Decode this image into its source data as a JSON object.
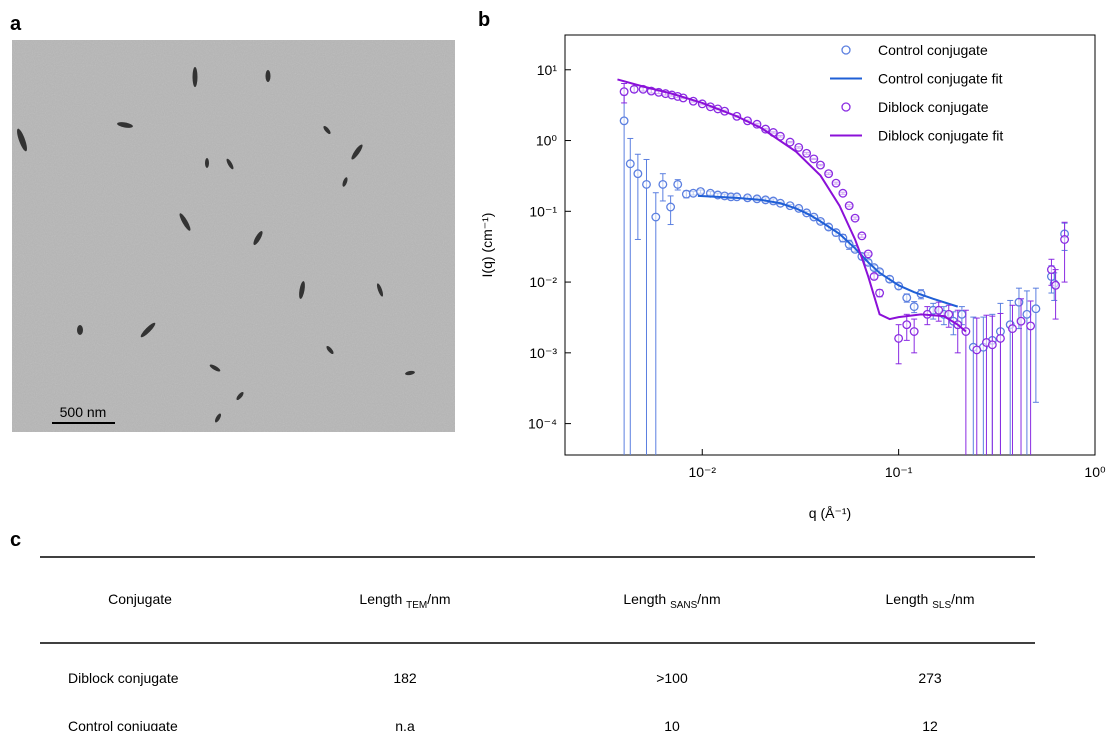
{
  "panel_labels": [
    "a",
    "b",
    "c"
  ],
  "image": {
    "scale_bar": "500 nm"
  },
  "chart_data": {
    "type": "scatter",
    "xlabel": "q (Å⁻¹)",
    "ylabel": "I(q) (cm⁻¹)",
    "log_x": true,
    "log_y": true,
    "legend": "upper right",
    "xlim": [
      0.002,
      1
    ],
    "ylim": [
      3.6e-05,
      31
    ],
    "xticks": [
      {
        "value": 0.01,
        "label": "10⁻²"
      },
      {
        "value": 0.1,
        "label": "10⁻¹"
      },
      {
        "value": 1,
        "label": "10⁰"
      }
    ],
    "yticks": [
      {
        "value": 0.0001,
        "label": "10⁻⁴"
      },
      {
        "value": 0.001,
        "label": "10⁻³"
      },
      {
        "value": 0.01,
        "label": "10⁻²"
      },
      {
        "value": 0.1,
        "label": "10⁻¹"
      },
      {
        "value": 1,
        "label": "10⁰"
      },
      {
        "value": 10,
        "label": "10¹"
      }
    ],
    "series": [
      {
        "name": "Control conjugate",
        "type": "scatter",
        "color": "#5b7fe0",
        "x": [
          0.004,
          0.0043,
          0.0047,
          0.0052,
          0.0058,
          0.0063,
          0.0069,
          0.0075,
          0.0083,
          0.009,
          0.0098,
          0.011,
          0.012,
          0.013,
          0.014,
          0.015,
          0.017,
          0.019,
          0.021,
          0.023,
          0.025,
          0.028,
          0.031,
          0.034,
          0.037,
          0.04,
          0.044,
          0.048,
          0.052,
          0.056,
          0.06,
          0.065,
          0.07,
          0.075,
          0.08,
          0.09,
          0.1,
          0.11,
          0.12,
          0.13,
          0.15,
          0.17,
          0.19,
          0.21,
          0.24,
          0.27,
          0.3,
          0.33,
          0.37,
          0.41,
          0.45,
          0.5,
          0.6,
          0.62,
          0.7
        ],
        "values": [
          1.9,
          0.47,
          0.34,
          0.24,
          0.083,
          0.24,
          0.115,
          0.24,
          0.175,
          0.18,
          0.19,
          0.18,
          0.17,
          0.165,
          0.16,
          0.16,
          0.155,
          0.15,
          0.145,
          0.14,
          0.13,
          0.12,
          0.11,
          0.095,
          0.083,
          0.072,
          0.06,
          0.05,
          0.042,
          0.034,
          0.029,
          0.023,
          0.019,
          0.016,
          0.014,
          0.011,
          0.0088,
          0.006,
          0.0045,
          0.0068,
          0.004,
          0.0035,
          0.0028,
          0.0035,
          0.0012,
          0.0012,
          0.0015,
          0.002,
          0.0025,
          0.0052,
          0.0035,
          0.0042,
          0.012,
          0.0095,
          0.048
        ],
        "errors": [
          2.5,
          0.6,
          0.3,
          0.3,
          0.1,
          0.1,
          0.05,
          0.04,
          0.02,
          0.01,
          0.01,
          0.01,
          0.01,
          0.01,
          0.01,
          0.01,
          0.01,
          0.01,
          0.01,
          0.01,
          0.005,
          0.005,
          0.005,
          0.005,
          0.005,
          0.005,
          0.005,
          0.005,
          0.005,
          0.005,
          0.002,
          0.002,
          0.0015,
          0.0012,
          0.001,
          0.001,
          0.0008,
          0.0008,
          0.0008,
          0.001,
          0.001,
          0.001,
          0.001,
          0.001,
          0.002,
          0.002,
          0.002,
          0.003,
          0.003,
          0.003,
          0.004,
          0.004,
          0.005,
          0.004,
          0.02
        ]
      },
      {
        "name": "Control conjugate fit",
        "type": "line",
        "color": "#1f5fd6",
        "x": [
          0.0095,
          0.012,
          0.015,
          0.02,
          0.025,
          0.03,
          0.035,
          0.04,
          0.05,
          0.06,
          0.07,
          0.08,
          0.1,
          0.12,
          0.15,
          0.2
        ],
        "values": [
          0.165,
          0.16,
          0.155,
          0.145,
          0.13,
          0.11,
          0.09,
          0.072,
          0.048,
          0.03,
          0.019,
          0.0135,
          0.009,
          0.0072,
          0.0058,
          0.0045
        ]
      },
      {
        "name": "Diblock conjugate",
        "type": "scatter",
        "color": "#8a2be2",
        "x": [
          0.004,
          0.0045,
          0.005,
          0.0055,
          0.006,
          0.0065,
          0.007,
          0.0075,
          0.008,
          0.009,
          0.01,
          0.011,
          0.012,
          0.013,
          0.015,
          0.017,
          0.019,
          0.021,
          0.023,
          0.025,
          0.028,
          0.031,
          0.034,
          0.037,
          0.04,
          0.044,
          0.048,
          0.052,
          0.056,
          0.06,
          0.065,
          0.07,
          0.075,
          0.08,
          0.1,
          0.11,
          0.12,
          0.14,
          0.16,
          0.18,
          0.2,
          0.22,
          0.25,
          0.28,
          0.3,
          0.33,
          0.38,
          0.42,
          0.47,
          0.6,
          0.63,
          0.7
        ],
        "values": [
          4.9,
          5.3,
          5.3,
          5.0,
          4.8,
          4.6,
          4.4,
          4.2,
          4.0,
          3.6,
          3.3,
          3.0,
          2.8,
          2.6,
          2.2,
          1.9,
          1.7,
          1.45,
          1.3,
          1.15,
          0.95,
          0.8,
          0.66,
          0.55,
          0.45,
          0.34,
          0.25,
          0.18,
          0.12,
          0.08,
          0.045,
          0.025,
          0.012,
          0.007,
          0.0016,
          0.0025,
          0.002,
          0.0035,
          0.004,
          0.0035,
          0.0025,
          0.002,
          0.0011,
          0.0014,
          0.0013,
          0.0016,
          0.0022,
          0.0028,
          0.0024,
          0.015,
          0.009,
          0.04
        ],
        "errors": [
          1.5,
          0.5,
          0.3,
          0.3,
          0.2,
          0.2,
          0.15,
          0.15,
          0.1,
          0.1,
          0.1,
          0.1,
          0.08,
          0.08,
          0.06,
          0.05,
          0.05,
          0.04,
          0.03,
          0.03,
          0.02,
          0.02,
          0.02,
          0.01,
          0.01,
          0.01,
          0.008,
          0.006,
          0.004,
          0.003,
          0.002,
          0.001,
          0.001,
          0.0008,
          0.0009,
          0.001,
          0.001,
          0.001,
          0.0012,
          0.0012,
          0.0015,
          0.002,
          0.002,
          0.002,
          0.002,
          0.002,
          0.0025,
          0.003,
          0.003,
          0.006,
          0.006,
          0.03
        ]
      },
      {
        "name": "Diblock conjugate fit",
        "type": "line",
        "color": "#8b10d8",
        "x": [
          0.0037,
          0.005,
          0.007,
          0.01,
          0.015,
          0.02,
          0.03,
          0.04,
          0.05,
          0.06,
          0.065,
          0.07,
          0.08,
          0.09,
          0.1,
          0.13,
          0.17,
          0.2,
          0.22
        ],
        "values": [
          7.3,
          5.8,
          4.6,
          3.4,
          2.2,
          1.5,
          0.7,
          0.32,
          0.12,
          0.04,
          0.022,
          0.012,
          0.0035,
          0.003,
          0.0032,
          0.0035,
          0.0033,
          0.0025,
          0.002
        ]
      }
    ]
  },
  "table": {
    "headers": [
      {
        "main": "Conjugate"
      },
      {
        "main": "Length",
        "sub": "TEM",
        "unit": "/nm"
      },
      {
        "main": "Length",
        "sub": "SANS",
        "unit": "/nm"
      },
      {
        "main": "Length",
        "sub": "SLS",
        "unit": "/nm"
      }
    ],
    "rows": [
      [
        "Diblock conjugate",
        182,
        ">100",
        273
      ],
      [
        "Control conjugate",
        "n.a",
        10,
        12
      ]
    ]
  }
}
